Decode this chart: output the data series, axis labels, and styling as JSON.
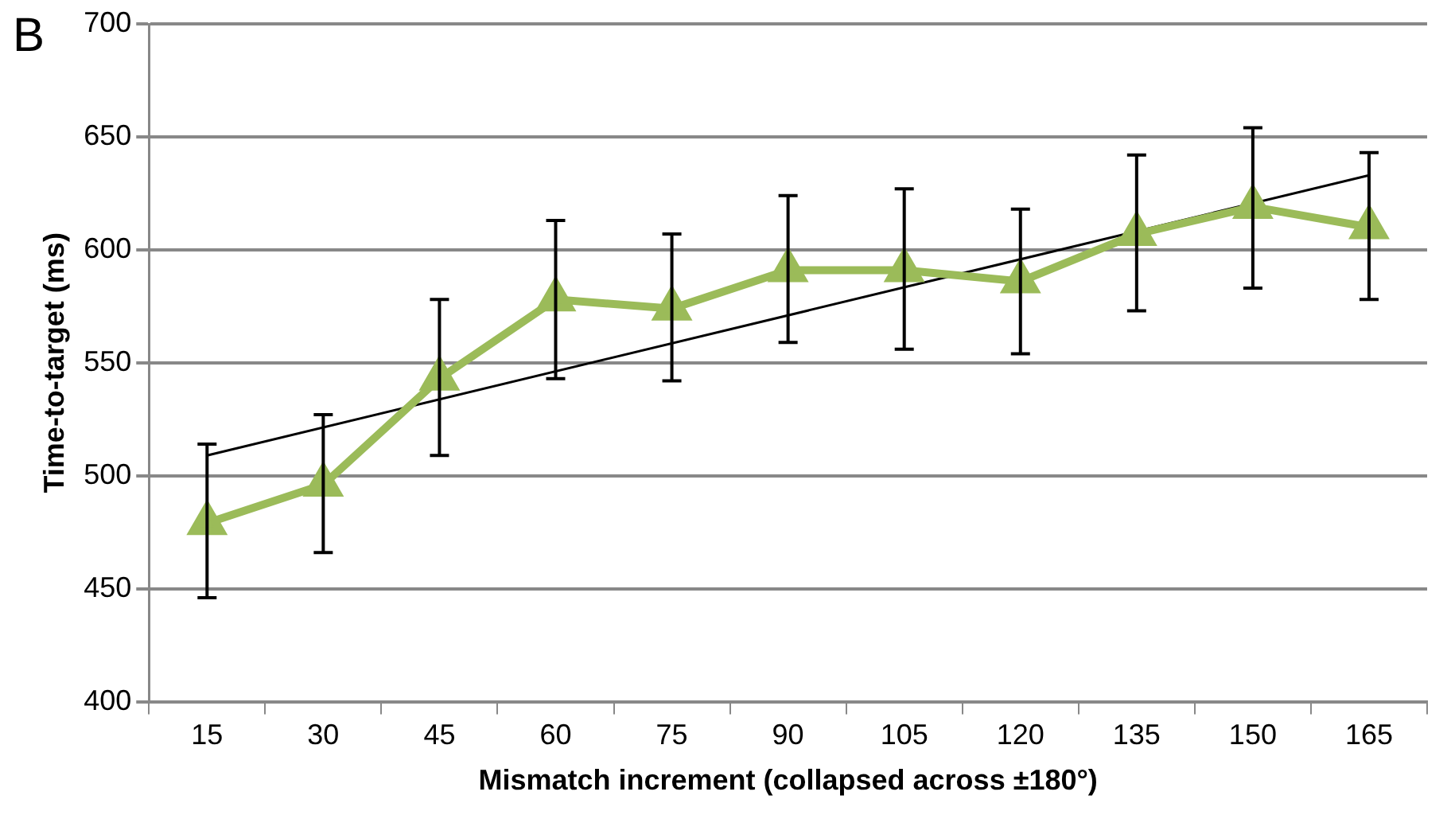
{
  "chart_data": {
    "type": "line",
    "xlabel": "Mismatch increment (collapsed across ±180°)",
    "ylabel": "Time-to-target (ms)",
    "annotations": [
      "B"
    ],
    "categories": [
      "15",
      "30",
      "45",
      "60",
      "75",
      "90",
      "105",
      "120",
      "135",
      "150",
      "165"
    ],
    "series": [
      {
        "color": "#9bbb59",
        "marker": "triangle",
        "values": [
          479,
          496,
          543,
          578,
          574,
          591,
          591,
          586,
          607,
          619,
          610
        ],
        "errors": [
          [
            446,
            514
          ],
          [
            466,
            527
          ],
          [
            509,
            578
          ],
          [
            543,
            613
          ],
          [
            542,
            607
          ],
          [
            559,
            624
          ],
          [
            556,
            627
          ],
          [
            554,
            618
          ],
          [
            573,
            642
          ],
          [
            583,
            654
          ],
          [
            578,
            643
          ]
        ]
      },
      {
        "color": "#000000",
        "marker": "none",
        "x": [
          "15",
          "165"
        ],
        "values": [
          509,
          633
        ]
      }
    ],
    "ylim": [
      400,
      700
    ],
    "yticks": [
      400,
      450,
      500,
      550,
      600,
      650,
      700
    ],
    "grid": "y",
    "legend": false
  }
}
